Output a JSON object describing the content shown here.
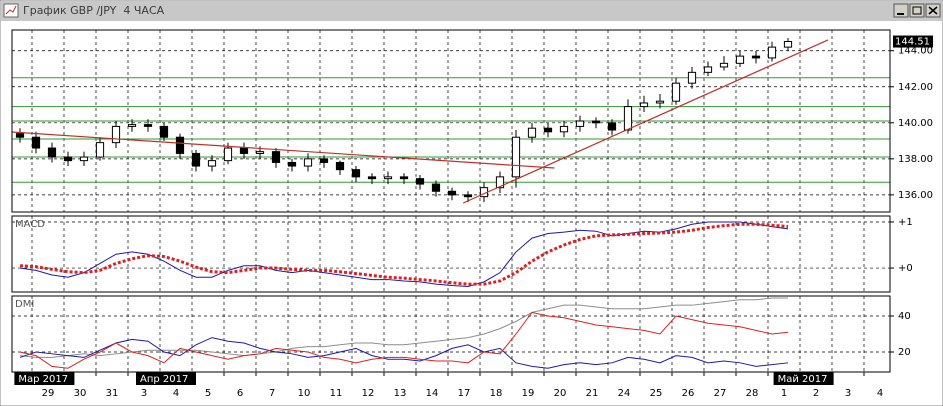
{
  "window": {
    "title": "График GBP /JPY  4 ЧАСА"
  },
  "chart_data": [
    {
      "type": "candlestick",
      "xlim": [
        -0.5,
        54.375
      ],
      "ylim": [
        135.05,
        145.15
      ],
      "yticks": [
        {
          "value": 136,
          "label": "136.00"
        },
        {
          "value": 138,
          "label": "138.00"
        },
        {
          "value": 140,
          "label": "140.00"
        },
        {
          "value": 142,
          "label": "142.00"
        },
        {
          "value": 144,
          "label": "144.00"
        }
      ],
      "last_price": 144.51,
      "color": "#000000",
      "open": [
        139.4,
        139.2,
        138.6,
        138.1,
        137.9,
        138.1,
        138.9,
        139.8,
        139.9,
        139.8,
        139.2,
        138.3,
        137.6,
        137.9,
        138.6,
        138.3,
        138.4,
        137.8,
        137.6,
        138.0,
        137.8,
        137.4,
        137.0,
        136.9,
        137.0,
        136.9,
        136.6,
        136.2,
        136.0,
        135.9,
        136.4,
        137.0,
        139.2,
        139.7,
        139.5,
        139.8,
        140.1,
        140.0,
        139.6,
        140.9,
        141.1,
        141.2,
        142.2,
        142.8,
        143.1,
        143.3,
        143.7,
        143.6,
        144.2
      ],
      "high": [
        139.7,
        139.5,
        138.9,
        138.4,
        138.4,
        139.2,
        140.1,
        140.2,
        140.2,
        140.0,
        139.4,
        138.5,
        138.2,
        138.9,
        138.9,
        138.7,
        138.6,
        138.0,
        138.3,
        138.2,
        137.9,
        137.6,
        137.2,
        137.3,
        137.2,
        137.1,
        136.8,
        136.4,
        136.2,
        136.7,
        137.3,
        139.6,
        140.0,
        140.0,
        140.1,
        140.4,
        140.3,
        140.2,
        141.3,
        141.5,
        141.6,
        142.5,
        143.1,
        143.4,
        143.7,
        144.0,
        144.0,
        144.5,
        144.7
      ],
      "low": [
        138.9,
        138.3,
        137.8,
        137.6,
        137.6,
        137.9,
        138.6,
        139.5,
        139.5,
        139.0,
        138.0,
        137.3,
        137.3,
        137.7,
        138.0,
        138.0,
        137.5,
        137.3,
        137.3,
        137.5,
        137.1,
        136.7,
        136.6,
        136.6,
        136.6,
        136.3,
        135.9,
        135.7,
        135.6,
        135.6,
        136.1,
        136.4,
        138.9,
        139.2,
        139.2,
        139.5,
        139.7,
        139.3,
        139.4,
        140.6,
        140.8,
        141.0,
        141.9,
        142.6,
        142.9,
        143.1,
        143.3,
        143.4,
        144.0
      ],
      "close": [
        139.2,
        138.6,
        138.1,
        137.9,
        138.1,
        138.9,
        139.8,
        139.9,
        139.8,
        139.2,
        138.3,
        137.6,
        137.9,
        138.6,
        138.3,
        138.4,
        137.8,
        137.6,
        138.0,
        137.8,
        137.4,
        137.0,
        136.9,
        137.0,
        136.9,
        136.6,
        136.2,
        136.0,
        135.9,
        136.4,
        137.0,
        139.2,
        139.7,
        139.5,
        139.8,
        140.1,
        140.0,
        139.6,
        140.9,
        141.1,
        141.2,
        142.2,
        142.8,
        143.1,
        143.3,
        143.7,
        143.6,
        144.2,
        144.51
      ],
      "levels": [
        136.7,
        138.1,
        139.1,
        140.1,
        140.9,
        142.5
      ],
      "level_color": "#2e9a2e",
      "trendlines": [
        {
          "x": [
            -0.5,
            33.4
          ],
          "y": [
            139.49,
            137.49
          ]
        },
        {
          "x": [
            27.7,
            50.5
          ],
          "y": [
            135.55,
            144.6
          ]
        }
      ],
      "trend_color": "#c0302a",
      "grid": true
    },
    {
      "type": "line",
      "label": "MACD",
      "xlim": [
        -0.5,
        54.375
      ],
      "ylim": [
        -0.52,
        1.13
      ],
      "yticks": [
        {
          "value": 1,
          "label": "+1"
        },
        {
          "value": 0,
          "label": "+0"
        }
      ],
      "series": [
        {
          "color": "#1a1aa8",
          "values": [
            0.0,
            -0.05,
            -0.15,
            -0.2,
            -0.1,
            0.1,
            0.3,
            0.35,
            0.3,
            0.15,
            -0.05,
            -0.2,
            -0.2,
            -0.05,
            0.05,
            0.05,
            -0.05,
            -0.1,
            -0.05,
            -0.1,
            -0.15,
            -0.2,
            -0.25,
            -0.25,
            -0.28,
            -0.3,
            -0.35,
            -0.38,
            -0.4,
            -0.3,
            -0.1,
            0.35,
            0.65,
            0.75,
            0.78,
            0.82,
            0.8,
            0.7,
            0.75,
            0.8,
            0.78,
            0.85,
            0.95,
            1.0,
            1.0,
            1.0,
            0.95,
            0.9,
            0.85
          ]
        },
        {
          "color": "#e02020",
          "style": "dotted",
          "values": [
            0.05,
            0.03,
            -0.03,
            -0.08,
            -0.1,
            -0.05,
            0.1,
            0.2,
            0.27,
            0.25,
            0.15,
            0.02,
            -0.08,
            -0.1,
            -0.05,
            0.0,
            0.0,
            -0.03,
            -0.05,
            -0.05,
            -0.08,
            -0.12,
            -0.16,
            -0.2,
            -0.22,
            -0.25,
            -0.28,
            -0.32,
            -0.35,
            -0.35,
            -0.28,
            -0.1,
            0.15,
            0.35,
            0.5,
            0.62,
            0.7,
            0.72,
            0.73,
            0.75,
            0.76,
            0.78,
            0.82,
            0.88,
            0.92,
            0.95,
            0.95,
            0.93,
            0.9
          ]
        }
      ],
      "grid": true
    },
    {
      "type": "line",
      "label": "DMI",
      "xlim": [
        -0.5,
        54.375
      ],
      "ylim": [
        8.9,
        51.1
      ],
      "yticks": [
        20,
        40
      ],
      "series": [
        {
          "color": "#8c8c8c",
          "values": [
            18,
            17,
            17,
            18,
            19,
            18,
            19,
            20,
            21,
            21,
            21,
            21,
            20,
            19,
            18,
            19,
            20,
            22,
            23,
            23,
            24,
            25,
            25,
            24,
            24,
            25,
            26,
            27,
            28,
            30,
            33,
            37,
            42,
            44,
            46,
            46,
            45,
            44,
            44,
            44,
            45,
            46,
            46,
            47,
            48,
            49,
            49,
            50,
            50
          ]
        },
        {
          "color": "#1a1aa8",
          "values": [
            17,
            20,
            19,
            18,
            17,
            21,
            25,
            27,
            26,
            20,
            18,
            24,
            28,
            26,
            25,
            22,
            20,
            19,
            17,
            18,
            20,
            22,
            18,
            16,
            16,
            15,
            18,
            22,
            24,
            20,
            22,
            14,
            12,
            11,
            13,
            14,
            13,
            14,
            17,
            16,
            14,
            18,
            17,
            14,
            15,
            14,
            12,
            13,
            14
          ]
        },
        {
          "color": "#e02020",
          "values": [
            20,
            18,
            12,
            11,
            16,
            20,
            25,
            20,
            18,
            14,
            22,
            20,
            18,
            16,
            18,
            19,
            22,
            21,
            20,
            17,
            16,
            14,
            16,
            17,
            17,
            16,
            15,
            15,
            14,
            20,
            19,
            30,
            42,
            40,
            39,
            37,
            35,
            34,
            33,
            32,
            30,
            40,
            38,
            36,
            35,
            34,
            32,
            30,
            31
          ]
        }
      ],
      "xticks": [
        {
          "value": 1.75,
          "label": "29"
        },
        {
          "value": 3.75,
          "label": "30"
        },
        {
          "value": 5.75,
          "label": "31"
        },
        {
          "value": 7.75,
          "label": "3"
        },
        {
          "value": 9.75,
          "label": "4"
        },
        {
          "value": 11.75,
          "label": "5"
        },
        {
          "value": 13.75,
          "label": "6"
        },
        {
          "value": 15.75,
          "label": "7"
        },
        {
          "value": 17.75,
          "label": "10"
        },
        {
          "value": 19.75,
          "label": "11"
        },
        {
          "value": 21.75,
          "label": "12"
        },
        {
          "value": 23.75,
          "label": "13"
        },
        {
          "value": 25.75,
          "label": "14"
        },
        {
          "value": 27.75,
          "label": "17"
        },
        {
          "value": 29.75,
          "label": "18"
        },
        {
          "value": 31.75,
          "label": "19"
        },
        {
          "value": 33.75,
          "label": "20"
        },
        {
          "value": 35.75,
          "label": "21"
        },
        {
          "value": 37.75,
          "label": "24"
        },
        {
          "value": 39.75,
          "label": "25"
        },
        {
          "value": 41.75,
          "label": "26"
        },
        {
          "value": 43.75,
          "label": "27"
        },
        {
          "value": 45.75,
          "label": "28"
        },
        {
          "value": 47.75,
          "label": "1"
        },
        {
          "value": 49.75,
          "label": "2"
        },
        {
          "value": 51.75,
          "label": "3"
        },
        {
          "value": 53.75,
          "label": "4"
        }
      ],
      "periods": [
        {
          "value": -0.35,
          "label": "Мар 2017"
        },
        {
          "value": 7.25,
          "label": "Апр 2017"
        },
        {
          "value": 47.1,
          "label": "Май 2017"
        }
      ],
      "grid": true
    }
  ]
}
